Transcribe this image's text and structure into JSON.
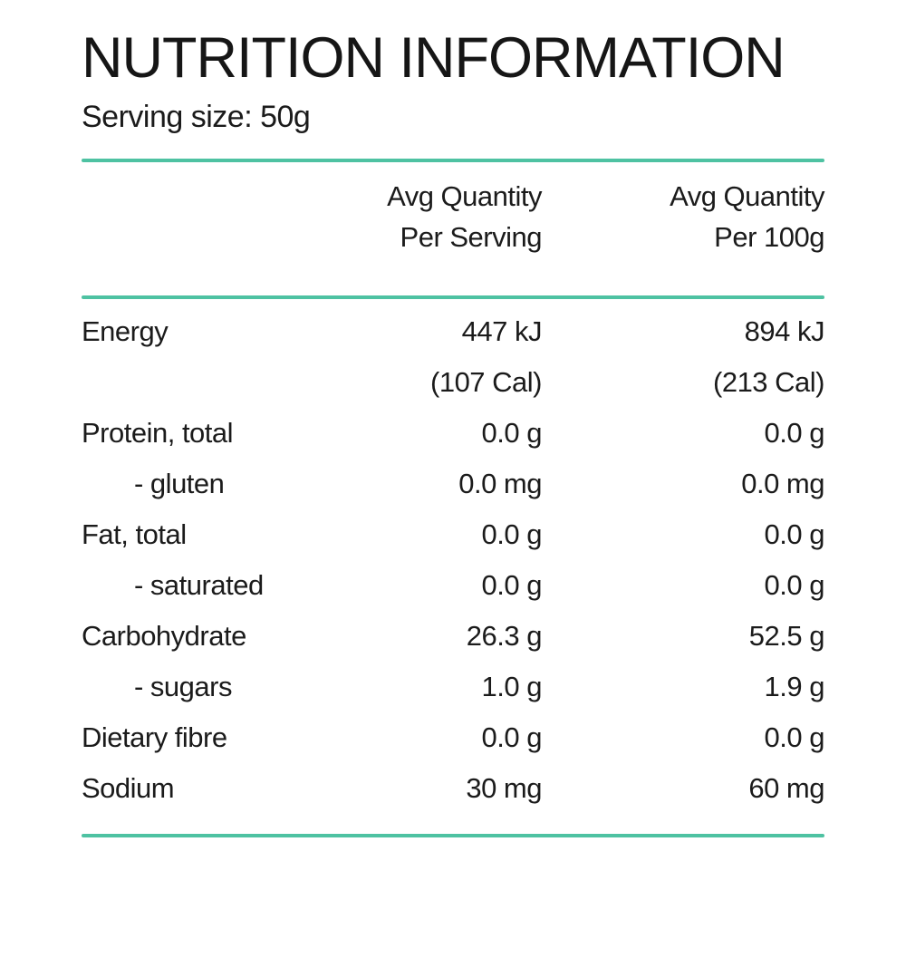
{
  "title": "NUTRITION INFORMATION",
  "serving_size": "Serving size: 50g",
  "accent_color": "#4EC2A2",
  "table": {
    "col_headers": [
      {
        "line1": "Avg Quantity",
        "line2": "Per Serving"
      },
      {
        "line1": "Avg Quantity",
        "line2": "Per 100g"
      }
    ],
    "rows": [
      {
        "label": "Energy",
        "indent": false,
        "per_serving": "447 kJ",
        "per_100g": "894 kJ"
      },
      {
        "label": "",
        "indent": false,
        "per_serving": "(107 Cal)",
        "per_100g": "(213 Cal)"
      },
      {
        "label": "Protein, total",
        "indent": false,
        "per_serving": "0.0 g",
        "per_100g": "0.0 g"
      },
      {
        "label": "- gluten",
        "indent": true,
        "per_serving": "0.0 mg",
        "per_100g": "0.0 mg"
      },
      {
        "label": "Fat, total",
        "indent": false,
        "per_serving": "0.0 g",
        "per_100g": "0.0 g"
      },
      {
        "label": "- saturated",
        "indent": true,
        "per_serving": "0.0 g",
        "per_100g": "0.0 g"
      },
      {
        "label": "Carbohydrate",
        "indent": false,
        "per_serving": "26.3 g",
        "per_100g": "52.5 g"
      },
      {
        "label": "- sugars",
        "indent": true,
        "per_serving": "1.0 g",
        "per_100g": "1.9 g"
      },
      {
        "label": "Dietary fibre",
        "indent": false,
        "per_serving": "0.0 g",
        "per_100g": "0.0 g"
      },
      {
        "label": "Sodium",
        "indent": false,
        "per_serving": "30 mg",
        "per_100g": "60 mg"
      }
    ]
  }
}
